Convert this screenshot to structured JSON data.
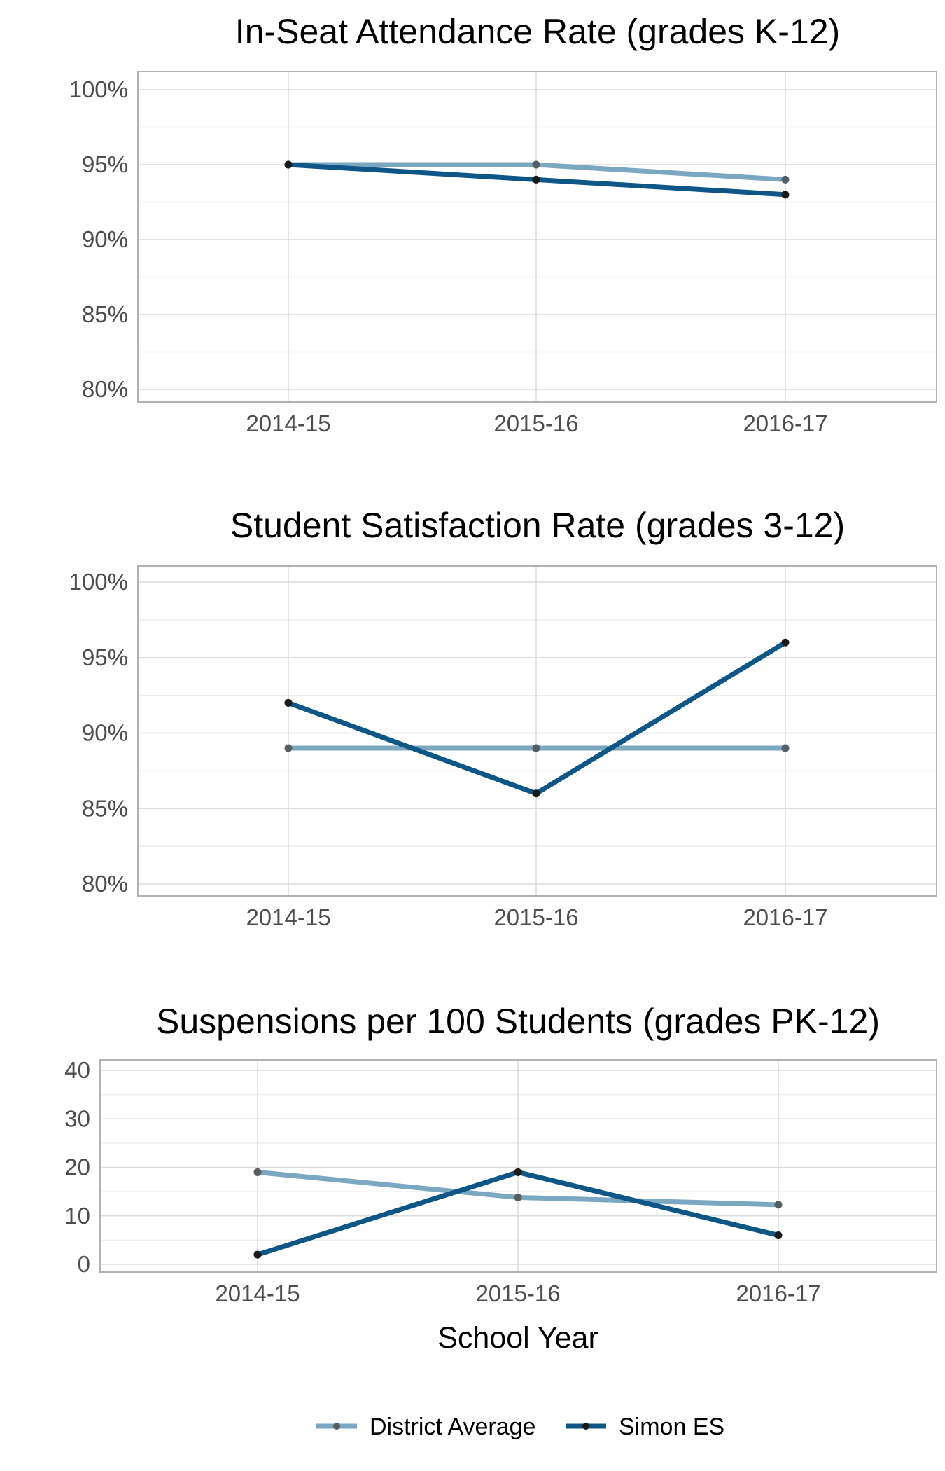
{
  "colors": {
    "district": "#7ba7c1",
    "school": "#0e5685",
    "point": "#1a1a1a",
    "grid_major": "#dcdcdc",
    "grid_minor": "#eeeeee",
    "panel_border": "#b3b3b3"
  },
  "chart_data": [
    {
      "type": "line",
      "title": "In-Seat Attendance Rate (grades K-12)",
      "categories": [
        "2014-15",
        "2015-16",
        "2016-17"
      ],
      "xlabel": "",
      "ylabel": "",
      "ylim": [
        80,
        100
      ],
      "yticks": [
        80,
        85,
        90,
        95,
        100
      ],
      "ytick_labels": [
        "80%",
        "85%",
        "90%",
        "95%",
        "100%"
      ],
      "grid": true,
      "series": [
        {
          "name": "District Average",
          "values": [
            95,
            95,
            94
          ]
        },
        {
          "name": "Simon ES",
          "values": [
            95,
            94,
            93
          ]
        }
      ]
    },
    {
      "type": "line",
      "title": "Student Satisfaction Rate (grades 3-12)",
      "categories": [
        "2014-15",
        "2015-16",
        "2016-17"
      ],
      "xlabel": "",
      "ylabel": "",
      "ylim": [
        80,
        100
      ],
      "yticks": [
        80,
        85,
        90,
        95,
        100
      ],
      "ytick_labels": [
        "80%",
        "85%",
        "90%",
        "95%",
        "100%"
      ],
      "grid": true,
      "series": [
        {
          "name": "District Average",
          "values": [
            89,
            89,
            89
          ]
        },
        {
          "name": "Simon ES",
          "values": [
            92,
            86,
            96
          ]
        }
      ]
    },
    {
      "type": "line",
      "title": "Suspensions per 100 Students (grades PK-12)",
      "categories": [
        "2014-15",
        "2015-16",
        "2016-17"
      ],
      "xlabel": "School Year",
      "ylabel": "",
      "ylim": [
        0,
        40
      ],
      "yticks": [
        0,
        10,
        20,
        30,
        40
      ],
      "ytick_labels": [
        "0",
        "10",
        "20",
        "30",
        "40"
      ],
      "grid": true,
      "series": [
        {
          "name": "District Average",
          "values": [
            19,
            13.8,
            12.3
          ]
        },
        {
          "name": "Simon ES",
          "values": [
            2,
            19,
            6
          ]
        }
      ]
    }
  ],
  "legend": {
    "position": "bottom",
    "items": [
      {
        "label": "District Average",
        "color_key": "district"
      },
      {
        "label": "Simon ES",
        "color_key": "school"
      }
    ]
  }
}
